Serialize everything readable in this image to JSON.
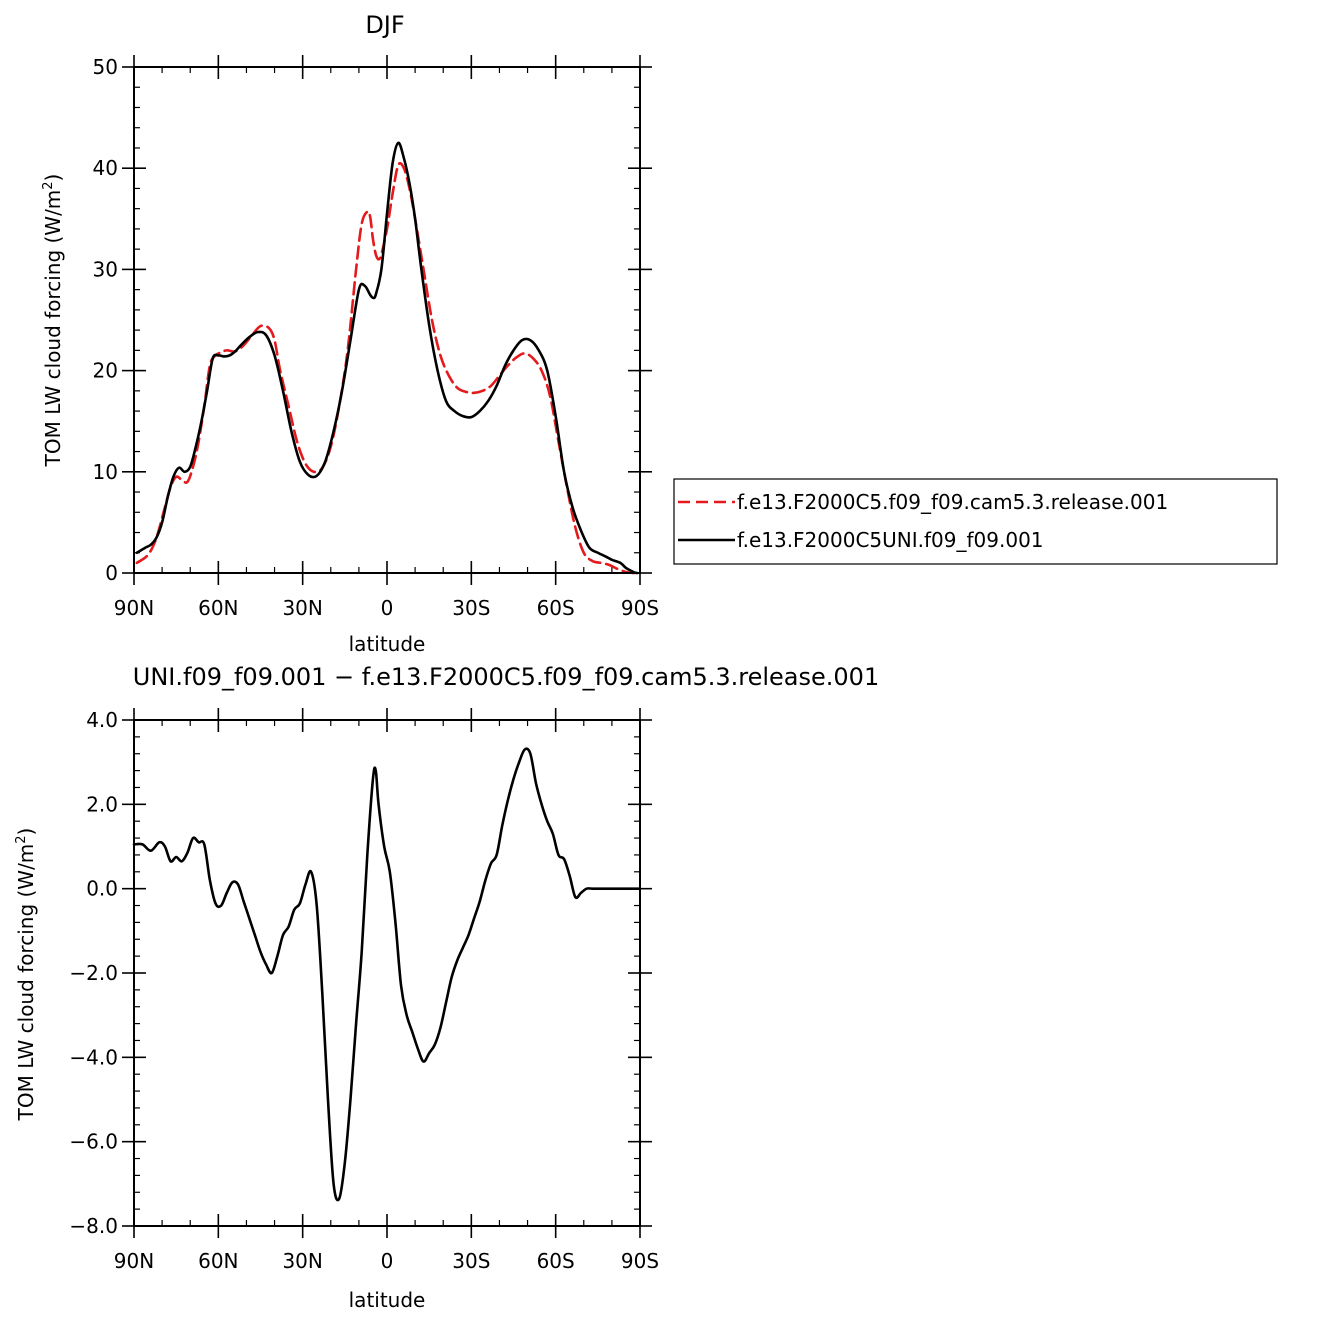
{
  "chart_data": [
    {
      "type": "line",
      "title": "DJF",
      "xlabel": "latitude",
      "ylabel": "TOM LW cloud forcing (W/m²)",
      "ylabel_parts": {
        "prefix": "TOM LW cloud forcing (W/m",
        "superscript": "2",
        "suffix": ")"
      },
      "xlim": [
        -90,
        90
      ],
      "ylim": [
        0,
        50
      ],
      "x_ticks": [
        -90,
        -60,
        -30,
        0,
        30,
        60,
        90
      ],
      "x_tick_labels": [
        "90N",
        "60N",
        "30N",
        "0",
        "30S",
        "60S",
        "90S"
      ],
      "y_ticks": [
        0,
        10,
        20,
        30,
        40,
        50
      ],
      "y_tick_labels": [
        "0",
        "10",
        "20",
        "30",
        "40",
        "50"
      ],
      "legend_position": "right",
      "series": [
        {
          "name": "f.e13.F2000C5.f09_f09.cam5.3.release.001",
          "color": "#e41a1c",
          "style": "dashed",
          "x": [
            -89,
            -85,
            -82,
            -79,
            -77,
            -75,
            -73,
            -71,
            -69,
            -67,
            -65,
            -63,
            -61,
            -59,
            -57,
            -54,
            -51,
            -48,
            -45,
            -42,
            -40,
            -38,
            -35,
            -32,
            -29,
            -26,
            -23,
            -20,
            -17,
            -14,
            -11,
            -9,
            -7,
            -6,
            -5,
            -4,
            -3,
            -2,
            0,
            2,
            4,
            6,
            8,
            10,
            13,
            16,
            19,
            22,
            25,
            28,
            31,
            34,
            37,
            40,
            43,
            46,
            49,
            52,
            55,
            58,
            61,
            64,
            67,
            70,
            73,
            76,
            79,
            82,
            85,
            88,
            89
          ],
          "y": [
            1,
            1.8,
            3.5,
            6.5,
            8.5,
            9.5,
            9.2,
            9.0,
            10.5,
            13,
            16.5,
            20.5,
            21.5,
            21.8,
            22,
            21.9,
            22.5,
            23.5,
            24.4,
            24.2,
            23,
            20,
            16.5,
            13,
            10.8,
            10,
            10.4,
            12.5,
            16.5,
            22,
            30,
            34.5,
            35.7,
            35.2,
            33,
            31.5,
            31,
            31.5,
            34,
            37.5,
            40.3,
            40,
            38,
            35,
            30,
            25,
            21.5,
            19.5,
            18.3,
            17.9,
            17.8,
            18,
            18.5,
            19.5,
            20.5,
            21.3,
            21.7,
            21.2,
            20,
            17.5,
            13,
            8.5,
            4.5,
            2,
            1.2,
            1,
            0.8,
            0.4,
            0.1,
            0,
            0
          ]
        },
        {
          "name": "f.e13.F2000C5UNI.f09_f09.001",
          "color": "#000000",
          "style": "solid",
          "x": [
            -89,
            -86,
            -84,
            -82,
            -80,
            -78,
            -76,
            -74,
            -72,
            -70,
            -68,
            -66,
            -64,
            -62,
            -60,
            -58,
            -56,
            -54,
            -52,
            -49,
            -46,
            -43,
            -40,
            -37,
            -34,
            -31,
            -28,
            -25,
            -22,
            -19,
            -16,
            -13,
            -10,
            -8,
            -6,
            -5,
            -4,
            -2,
            0,
            2,
            4,
            6,
            8,
            10,
            12,
            15,
            18,
            21,
            24,
            27,
            30,
            33,
            36,
            39,
            42,
            45,
            48,
            51,
            54,
            57,
            60,
            63,
            66,
            69,
            72,
            75,
            78,
            80,
            83,
            85,
            87,
            88,
            89
          ],
          "y": [
            2,
            2.5,
            2.8,
            3.5,
            5,
            7.5,
            9.5,
            10.4,
            10,
            10.5,
            12.5,
            15,
            18,
            21.2,
            21.5,
            21.4,
            21.5,
            21.9,
            22.5,
            23.3,
            23.8,
            23.5,
            21.5,
            18,
            14,
            11,
            9.7,
            9.6,
            11,
            14,
            18,
            23,
            28,
            28.4,
            27.5,
            27.2,
            27.5,
            30,
            35.5,
            40.5,
            42.5,
            41,
            38.5,
            35,
            30.5,
            24.5,
            20,
            17,
            16,
            15.5,
            15.4,
            16,
            17,
            18.5,
            20.5,
            22,
            23,
            23,
            22,
            20,
            15.5,
            10,
            6.5,
            4.2,
            2.5,
            2,
            1.6,
            1.3,
            1,
            0.5,
            0.2,
            0.05,
            0
          ]
        }
      ]
    },
    {
      "type": "line",
      "title": "UNI.f09_f09.001 − f.e13.F2000C5.f09_f09.cam5.3.release.001",
      "xlabel": "latitude",
      "ylabel": "TOM LW cloud forcing (W/m²)",
      "ylabel_parts": {
        "prefix": "TOM LW cloud forcing (W/m",
        "superscript": "2",
        "suffix": ")"
      },
      "xlim": [
        -90,
        90
      ],
      "ylim": [
        -8,
        4
      ],
      "x_ticks": [
        -90,
        -60,
        -30,
        0,
        30,
        60,
        90
      ],
      "x_tick_labels": [
        "90N",
        "60N",
        "30N",
        "0",
        "30S",
        "60S",
        "90S"
      ],
      "y_ticks": [
        -8,
        -6,
        -4,
        -2,
        0,
        2,
        4
      ],
      "y_tick_labels": [
        "−8.0",
        "−6.0",
        "−4.0",
        "−2.0",
        "0.0",
        "2.0",
        "4.0"
      ],
      "series": [
        {
          "name": "",
          "color": "#000000",
          "style": "solid",
          "x": [
            -90,
            -87,
            -84,
            -81,
            -79,
            -77,
            -75,
            -73,
            -71,
            -69,
            -67,
            -65,
            -63,
            -61,
            -59,
            -57,
            -55,
            -53,
            -51,
            -49,
            -47,
            -45,
            -43,
            -41,
            -39,
            -37,
            -35,
            -33,
            -31,
            -29,
            -27,
            -25,
            -23,
            -21,
            -19,
            -17,
            -15,
            -13,
            -11,
            -9,
            -7,
            -5,
            -4,
            -3,
            -1,
            1,
            3,
            5,
            7,
            9,
            11,
            13,
            15,
            17,
            19,
            21,
            23,
            25,
            27,
            29,
            31,
            33,
            35,
            37,
            39,
            41,
            43,
            45,
            47,
            49,
            51,
            53,
            55,
            57,
            59,
            61,
            63,
            65,
            67,
            69,
            71,
            73,
            75,
            77,
            79,
            81,
            83,
            85,
            87,
            89,
            90
          ],
          "y": [
            1.05,
            1.05,
            0.9,
            1.1,
            1.0,
            0.65,
            0.75,
            0.65,
            0.85,
            1.2,
            1.1,
            1.05,
            0.2,
            -0.35,
            -0.4,
            -0.1,
            0.15,
            0.1,
            -0.3,
            -0.7,
            -1.1,
            -1.5,
            -1.8,
            -2.0,
            -1.6,
            -1.1,
            -0.9,
            -0.5,
            -0.35,
            0.1,
            0.4,
            -0.4,
            -2.5,
            -5.0,
            -7.0,
            -7.35,
            -6.5,
            -5.0,
            -3.2,
            -1.5,
            0.8,
            2.6,
            2.8,
            2.0,
            1.0,
            0.4,
            -0.8,
            -2.3,
            -3.0,
            -3.4,
            -3.8,
            -4.1,
            -3.9,
            -3.7,
            -3.3,
            -2.7,
            -2.1,
            -1.7,
            -1.4,
            -1.1,
            -0.7,
            -0.3,
            0.2,
            0.6,
            0.8,
            1.5,
            2.1,
            2.6,
            3.0,
            3.3,
            3.2,
            2.5,
            2.0,
            1.6,
            1.3,
            0.8,
            0.7,
            0.3,
            -0.2,
            -0.1,
            0.0,
            0.0,
            0.0,
            0.0,
            0.0,
            0.0,
            0.0,
            0.0,
            0.0,
            0.0,
            0.0
          ]
        }
      ]
    }
  ]
}
